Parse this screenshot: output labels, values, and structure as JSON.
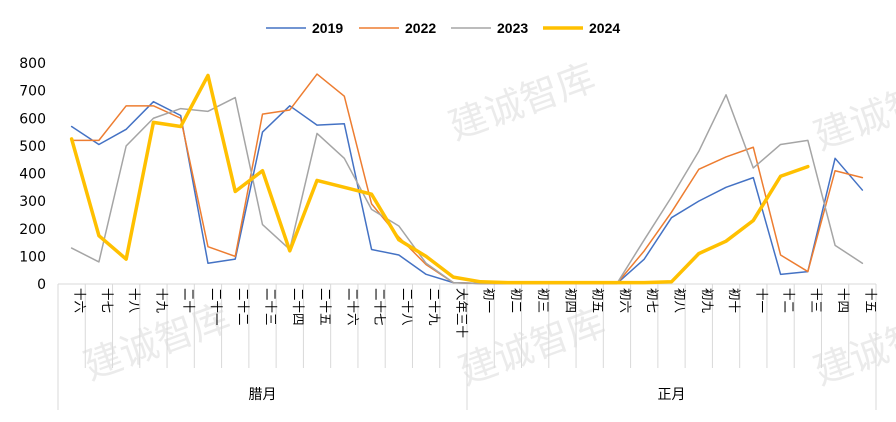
{
  "colors": {
    "2019": "#4472C4",
    "2022": "#ED7D31",
    "2023": "#A5A5A5",
    "2024": "#FFC000"
  },
  "watermark": "建诚智库",
  "chart_data": {
    "type": "line",
    "categories": [
      "十六",
      "十七",
      "十八",
      "十九",
      "二十",
      "廿一",
      "廿二",
      "廿三",
      "廿四",
      "廿五",
      "廿六",
      "廿七",
      "廿八",
      "廿九",
      "大年三十",
      "初一",
      "初二",
      "初三",
      "初四",
      "初五",
      "初六",
      "初七",
      "初八",
      "初九",
      "初十",
      "十一",
      "十二",
      "十三",
      "十四",
      "十五"
    ],
    "category_labels": [
      "十六",
      "十七",
      "十八",
      "十九",
      "二十",
      "二十一",
      "二十二",
      "二十三",
      "二十四",
      "二十五",
      "二十六",
      "二十七",
      "二十八",
      "二十九",
      "大年三十",
      "初一",
      "初二",
      "初三",
      "初四",
      "初五",
      "初六",
      "初七",
      "初八",
      "初九",
      "初十",
      "十一",
      "十二",
      "十三",
      "十四",
      "十五"
    ],
    "groups": [
      {
        "label": "腊月",
        "start": 0,
        "end": 14
      },
      {
        "label": "正月",
        "start": 15,
        "end": 29
      }
    ],
    "ylim": [
      0,
      800
    ],
    "yticks": [
      "0",
      "100",
      "200",
      "300",
      "400",
      "500",
      "600",
      "700",
      "800"
    ],
    "legend_position": "top-center",
    "grid": false,
    "series": [
      {
        "name": "2019",
        "values": [
          570,
          505,
          560,
          660,
          610,
          75,
          90,
          550,
          645,
          575,
          580,
          125,
          105,
          35,
          5,
          2,
          2,
          2,
          2,
          2,
          2,
          90,
          240,
          300,
          350,
          385,
          35,
          45,
          455,
          340
        ]
      },
      {
        "name": "2022",
        "values": [
          520,
          520,
          645,
          645,
          600,
          135,
          100,
          615,
          630,
          760,
          680,
          290,
          170,
          70,
          5,
          2,
          2,
          2,
          2,
          2,
          2,
          120,
          260,
          415,
          460,
          495,
          105,
          45,
          410,
          385
        ]
      },
      {
        "name": "2023",
        "values": [
          130,
          80,
          500,
          600,
          635,
          625,
          675,
          215,
          125,
          545,
          455,
          270,
          210,
          75,
          5,
          2,
          2,
          2,
          2,
          2,
          2,
          160,
          315,
          480,
          685,
          420,
          505,
          520,
          140,
          75
        ]
      },
      {
        "name": "2024",
        "values": [
          525,
          175,
          90,
          585,
          570,
          755,
          335,
          410,
          120,
          375,
          350,
          325,
          160,
          100,
          25,
          8,
          5,
          5,
          5,
          5,
          5,
          5,
          8,
          110,
          155,
          230,
          390,
          425,
          null,
          null
        ]
      }
    ]
  }
}
